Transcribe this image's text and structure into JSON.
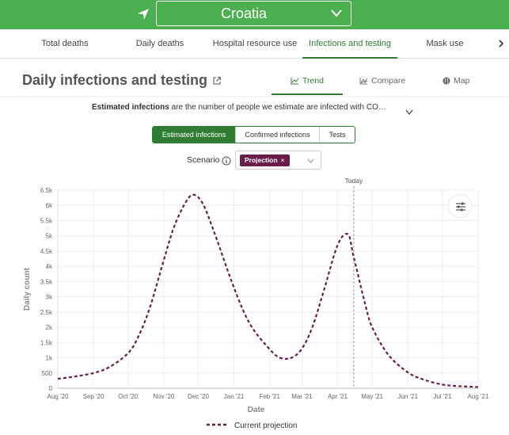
{
  "header": {
    "country": "Croatia",
    "icons": {
      "location": "location-arrow-icon",
      "dropdown": "chevron-down-icon"
    },
    "colors": {
      "brand_green": "#4caf50"
    }
  },
  "tabs": [
    {
      "label": "Total deaths",
      "active": false
    },
    {
      "label": "Daily deaths",
      "active": false
    },
    {
      "label": "Hospital resource use",
      "active": false
    },
    {
      "label": "Infections and testing",
      "active": true
    },
    {
      "label": "Mask use",
      "active": false
    }
  ],
  "page": {
    "title": "Daily infections and testing",
    "views": [
      {
        "label": "Trend",
        "icon": "line-chart-icon",
        "active": true
      },
      {
        "label": "Compare",
        "icon": "compare-chart-icon",
        "active": false
      },
      {
        "label": "Map",
        "icon": "globe-icon",
        "active": false
      }
    ],
    "description_bold": "Estimated infections",
    "description_rest": " are the number of people we estimate are infected with CO…",
    "metric_buttons": [
      {
        "label": "Estimated infections",
        "active": true
      },
      {
        "label": "Confirmed infections",
        "active": false
      },
      {
        "label": "Tests",
        "active": false
      }
    ],
    "scenario_label": "Scenario",
    "scenario_chip": "Projection",
    "scenario_chip_remove": "×"
  },
  "chart_data": {
    "type": "line",
    "xlabel": "Date",
    "ylabel": "Daily count",
    "ylim": [
      0,
      6500
    ],
    "y_ticks": [
      "0",
      "500",
      "1k",
      "1.5k",
      "2k",
      "2.5k",
      "3k",
      "3.5k",
      "4k",
      "4.5k",
      "5k",
      "5.5k",
      "6k",
      "6.5k"
    ],
    "x_ticks": [
      "Aug '20",
      "Sep '20",
      "Oct '20",
      "Nov '20",
      "Dec '20",
      "Jan '21",
      "Feb '21",
      "Mar '21",
      "Apr '21",
      "May '21",
      "Jun '21",
      "Jul '21",
      "Aug '21"
    ],
    "today_label": "Today",
    "today_x": "2021-04-15",
    "grid": true,
    "legend_position": "bottom",
    "color": "#6b1d4a",
    "series": [
      {
        "name": "Current projection",
        "line_style": "dashed",
        "x": [
          "2020-08-01",
          "2020-08-15",
          "2020-09-01",
          "2020-09-15",
          "2020-10-01",
          "2020-10-10",
          "2020-10-20",
          "2020-11-01",
          "2020-11-10",
          "2020-11-20",
          "2020-11-27",
          "2020-12-05",
          "2020-12-15",
          "2021-01-01",
          "2021-01-15",
          "2021-02-01",
          "2021-02-10",
          "2021-02-20",
          "2021-03-01",
          "2021-03-10",
          "2021-03-20",
          "2021-04-01",
          "2021-04-10",
          "2021-04-15",
          "2021-04-25",
          "2021-05-01",
          "2021-05-15",
          "2021-06-01",
          "2021-06-15",
          "2021-07-01",
          "2021-07-15",
          "2021-08-01"
        ],
        "y": [
          310,
          380,
          500,
          700,
          1150,
          1700,
          2650,
          4200,
          5300,
          6100,
          6350,
          6050,
          5100,
          3300,
          2100,
          1280,
          1000,
          1000,
          1300,
          2000,
          3200,
          4700,
          5050,
          4300,
          2750,
          2000,
          1100,
          520,
          280,
          120,
          70,
          40
        ]
      }
    ]
  }
}
